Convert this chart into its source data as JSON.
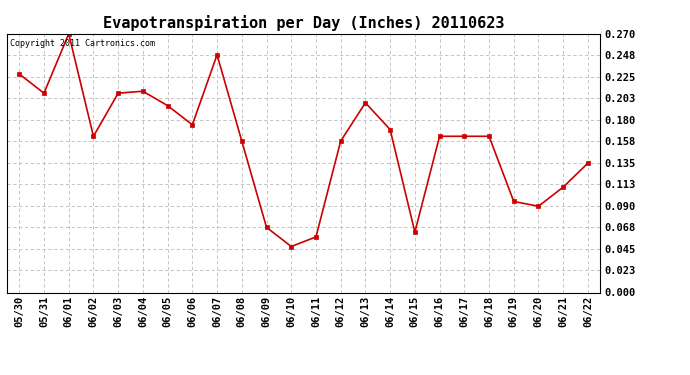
{
  "title": "Evapotranspiration per Day (Inches) 20110623",
  "copyright_text": "Copyright 2011 Cartronics.com",
  "x_labels": [
    "05/30",
    "05/31",
    "06/01",
    "06/02",
    "06/03",
    "06/04",
    "06/05",
    "06/06",
    "06/07",
    "06/08",
    "06/09",
    "06/10",
    "06/11",
    "06/12",
    "06/13",
    "06/14",
    "06/15",
    "06/16",
    "06/17",
    "06/18",
    "06/19",
    "06/20",
    "06/21",
    "06/22"
  ],
  "y_values": [
    0.228,
    0.208,
    0.27,
    0.163,
    0.208,
    0.21,
    0.195,
    0.175,
    0.248,
    0.158,
    0.068,
    0.048,
    0.058,
    0.158,
    0.198,
    0.17,
    0.063,
    0.163,
    0.163,
    0.163,
    0.095,
    0.09,
    0.11,
    0.135
  ],
  "y_ticks": [
    0.0,
    0.023,
    0.045,
    0.068,
    0.09,
    0.113,
    0.135,
    0.158,
    0.18,
    0.203,
    0.225,
    0.248,
    0.27
  ],
  "line_color": "#cc0000",
  "marker": "s",
  "marker_size": 2.5,
  "line_width": 1.2,
  "bg_color": "#ffffff",
  "grid_color": "#bbbbbb",
  "title_fontsize": 11,
  "copyright_fontsize": 6,
  "tick_fontsize": 7.5,
  "ylim": [
    0.0,
    0.27
  ]
}
